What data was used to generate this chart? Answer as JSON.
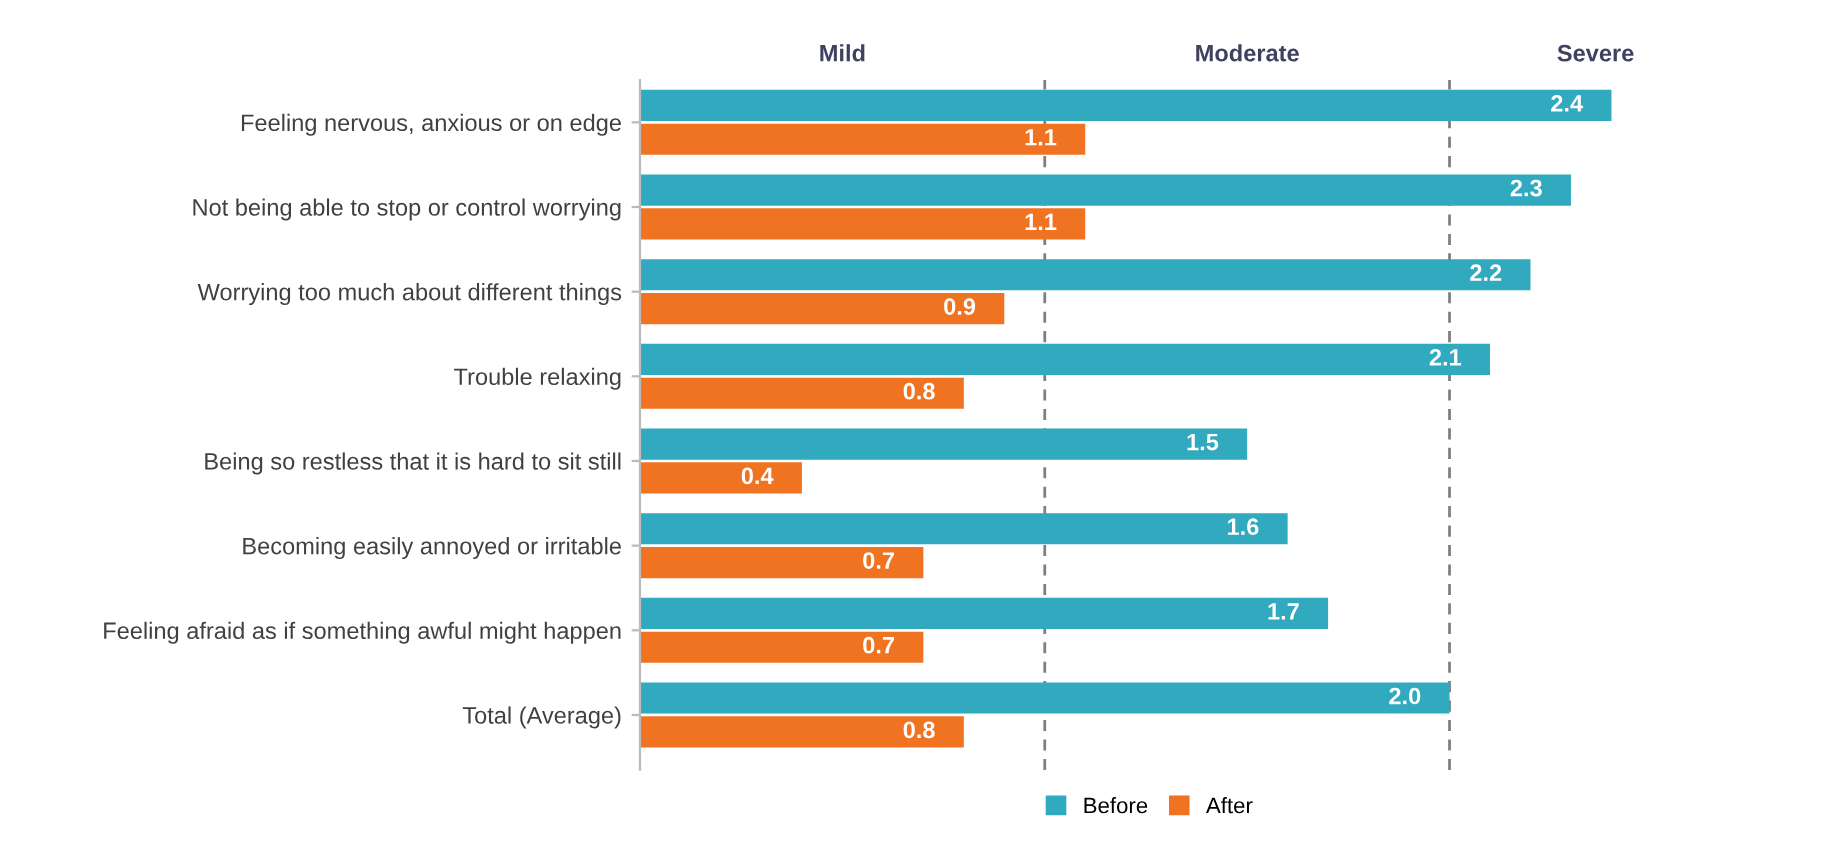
{
  "chart_data": {
    "type": "bar",
    "orientation": "horizontal",
    "categories": [
      "Feeling nervous, anxious or on edge",
      "Not being able to stop or control worrying",
      "Worrying too much about different things",
      "Trouble relaxing",
      "Being so restless that it is hard to sit still",
      "Becoming easily annoyed or irritable",
      "Feeling afraid as if something awful might happen",
      "Total (Average)"
    ],
    "series": [
      {
        "name": "Before",
        "color": "#31a9bf",
        "values": [
          2.4,
          2.3,
          2.2,
          2.1,
          1.5,
          1.6,
          1.7,
          2.0
        ],
        "value_labels": [
          "2.4",
          "2.3",
          "2.2",
          "2.1",
          "1.5",
          "1.6",
          "1.7",
          "2.0"
        ]
      },
      {
        "name": "After",
        "color": "#f07322",
        "values": [
          1.1,
          1.1,
          0.9,
          0.8,
          0.4,
          0.7,
          0.7,
          0.8
        ],
        "value_labels": [
          "1.1",
          "1.1",
          "0.9",
          "0.8",
          "0.4",
          "0.7",
          "0.7",
          "0.8"
        ]
      }
    ],
    "ref_lines": [
      {
        "axis": "x",
        "value": 1,
        "line_style": "dashed",
        "color": "#7f7f7f"
      },
      {
        "axis": "x",
        "value": 2,
        "line_style": "dashed",
        "color": "#7f7f7f"
      }
    ],
    "annotations": [
      "Mild",
      "Moderate",
      "Severe"
    ],
    "tick_labels": "y",
    "legend": "bottom"
  }
}
